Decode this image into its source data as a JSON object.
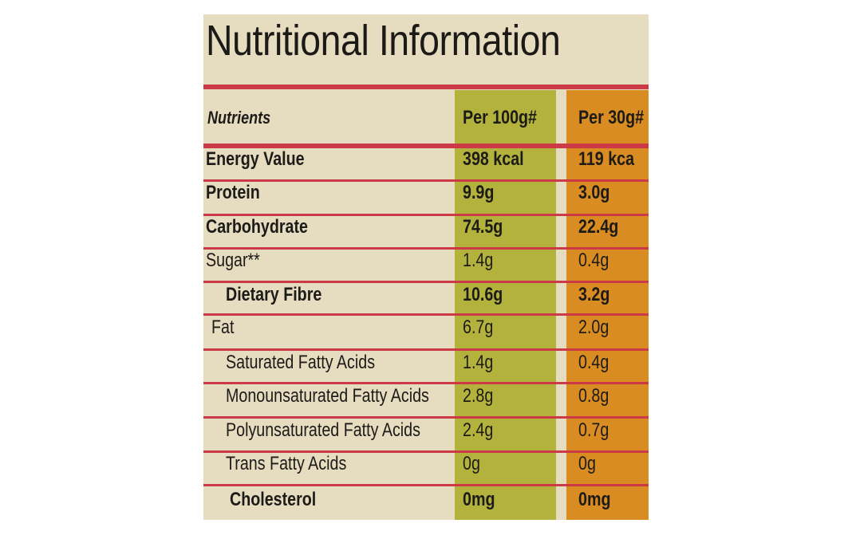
{
  "header": {
    "title": "Nutritional Information"
  },
  "table": {
    "columns": [
      "Nutrients",
      "Per 100g#",
      "Per 30g#"
    ],
    "rows": [
      [
        "Energy Value",
        "398 kcal",
        "119 kca"
      ],
      [
        "Protein",
        "9.9g",
        "3.0g"
      ],
      [
        "Carbohydrate",
        "74.5g",
        "22.4g"
      ],
      [
        "Sugar**",
        "1.4g",
        "0.4g"
      ],
      [
        "Dietary Fibre",
        "10.6g",
        "3.2g"
      ],
      [
        "Fat",
        "6.7g",
        "2.0g"
      ],
      [
        "Saturated Fatty Acids",
        "1.4g",
        "0.4g"
      ],
      [
        "Monounsaturated Fatty Acids",
        "2.8g",
        "0.8g"
      ],
      [
        "Polyunsaturated Fatty Acids",
        "2.4g",
        "0.7g"
      ],
      [
        "Trans Fatty Acids",
        "0g",
        "0g"
      ],
      [
        "Cholesterol",
        "0mg",
        "0mg"
      ]
    ]
  }
}
